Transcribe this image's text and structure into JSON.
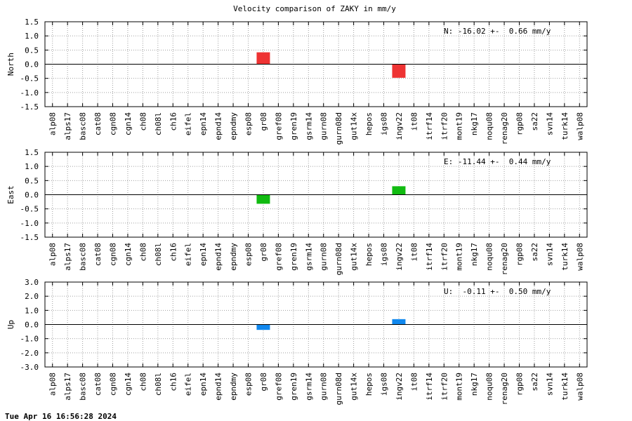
{
  "chart_data": {
    "title": "Velocity comparison of ZAKY in mm/y",
    "type": "bar",
    "categories": [
      "alp08",
      "alps17",
      "basc08",
      "cat08",
      "cgn08",
      "cgn14",
      "ch08",
      "ch08l",
      "ch16",
      "eifel",
      "epn14",
      "epnd14",
      "epndmy",
      "esp08",
      "gr08",
      "gref08",
      "gren19",
      "gsrm14",
      "gurn08",
      "gurn08d",
      "gut14x",
      "hepos",
      "igs08",
      "ingv22",
      "it08",
      "itrf14",
      "itrf20",
      "mont19",
      "nkg17",
      "noqu08",
      "renag20",
      "rgp08",
      "sa22",
      "svn14",
      "turk14",
      "walp08"
    ],
    "grid": true,
    "panels": [
      {
        "ylabel": "North",
        "annotation": "N: -16.02 +-  0.66 mm/y",
        "ylim": [
          -1.5,
          1.5
        ],
        "yticks": [
          "1.5",
          "1.0",
          "0.5",
          "0.0",
          "-0.5",
          "-1.0",
          "-1.5"
        ],
        "color": "#ee3333",
        "bars": [
          {
            "category": "gr08",
            "value": 0.42
          },
          {
            "category": "ingv22",
            "value": -0.48
          }
        ]
      },
      {
        "ylabel": "East",
        "annotation": "E: -11.44 +-  0.44 mm/y",
        "ylim": [
          -1.5,
          1.5
        ],
        "yticks": [
          "1.5",
          "1.0",
          "0.5",
          "0.0",
          "-0.5",
          "-1.0",
          "-1.5"
        ],
        "color": "#11bb11",
        "bars": [
          {
            "category": "gr08",
            "value": -0.32
          },
          {
            "category": "ingv22",
            "value": 0.3
          }
        ]
      },
      {
        "ylabel": "Up",
        "annotation": "U:  -0.11 +-  0.50 mm/y",
        "ylim": [
          -3.0,
          3.0
        ],
        "yticks": [
          "3.0",
          "2.0",
          "1.0",
          "0.0",
          "-1.0",
          "-2.0",
          "-3.0"
        ],
        "color": "#1188ee",
        "bars": [
          {
            "category": "gr08",
            "value": -0.38
          },
          {
            "category": "ingv22",
            "value": 0.38
          }
        ]
      }
    ]
  },
  "footer": {
    "timestamp": "Tue Apr 16 16:56:28 2024"
  }
}
